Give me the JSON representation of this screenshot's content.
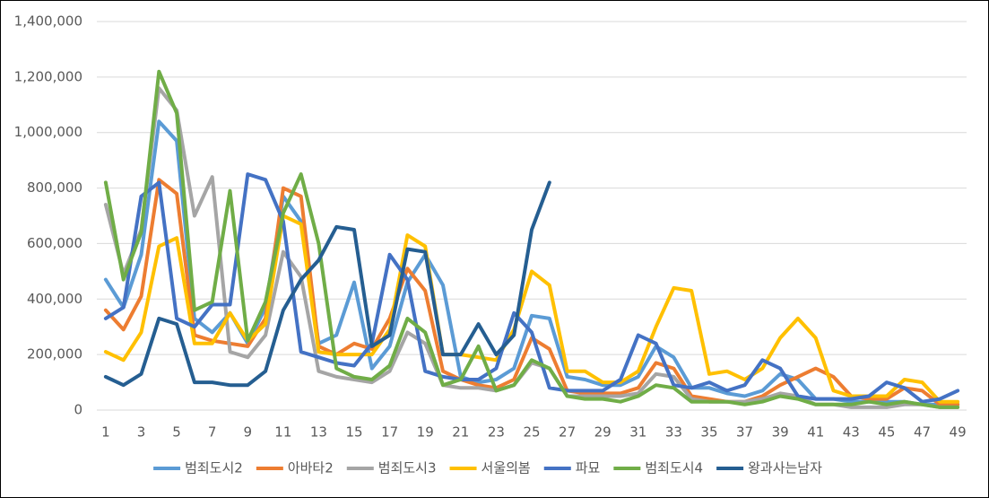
{
  "chart_data": {
    "type": "line",
    "categories": [
      "1",
      null,
      "3",
      null,
      "5",
      null,
      "7",
      null,
      "9",
      null,
      "11",
      null,
      "13",
      null,
      "15",
      null,
      "17",
      null,
      "19",
      null,
      "21",
      null,
      "23",
      null,
      "25",
      null,
      "27",
      null,
      "29",
      null,
      "31",
      null,
      "33",
      null,
      "35",
      null,
      "37",
      null,
      "39",
      null,
      "41",
      null,
      "43",
      null,
      "45",
      null,
      "47",
      null,
      "49"
    ],
    "ylim": [
      0,
      1400000
    ],
    "yticks": [
      {
        "value": 0,
        "label": "0"
      },
      {
        "value": 200000,
        "label": "200,000"
      },
      {
        "value": 400000,
        "label": "400,000"
      },
      {
        "value": 600000,
        "label": "600,000"
      },
      {
        "value": 800000,
        "label": "800,000"
      },
      {
        "value": 1000000,
        "label": "1,000,000"
      },
      {
        "value": 1200000,
        "label": "1,200,000"
      },
      {
        "value": 1400000,
        "label": "1,400,000"
      }
    ],
    "grid": true,
    "legend": "bottom",
    "series": [
      {
        "name": "범죄도시2",
        "color": "#5b9bd5",
        "values": [
          470000,
          370000,
          560000,
          1040000,
          970000,
          330000,
          280000,
          350000,
          240000,
          370000,
          770000,
          680000,
          240000,
          270000,
          460000,
          150000,
          230000,
          460000,
          560000,
          450000,
          120000,
          100000,
          110000,
          150000,
          340000,
          330000,
          120000,
          110000,
          90000,
          90000,
          120000,
          230000,
          190000,
          80000,
          80000,
          60000,
          50000,
          70000,
          130000,
          110000,
          40000,
          40000,
          30000,
          30000,
          30000,
          30000,
          20000,
          20000,
          20000
        ]
      },
      {
        "name": "아바타2",
        "color": "#ed7d31",
        "values": [
          360000,
          290000,
          410000,
          830000,
          780000,
          270000,
          250000,
          240000,
          230000,
          330000,
          800000,
          770000,
          230000,
          200000,
          240000,
          220000,
          330000,
          510000,
          430000,
          140000,
          110000,
          90000,
          80000,
          110000,
          260000,
          220000,
          70000,
          60000,
          60000,
          60000,
          80000,
          170000,
          150000,
          50000,
          40000,
          30000,
          30000,
          50000,
          90000,
          120000,
          150000,
          120000,
          50000,
          40000,
          40000,
          80000,
          70000,
          20000,
          20000
        ]
      },
      {
        "name": "범죄도시3",
        "color": "#a5a5a5",
        "values": [
          740000,
          490000,
          650000,
          1160000,
          1080000,
          700000,
          840000,
          210000,
          190000,
          270000,
          570000,
          480000,
          140000,
          120000,
          110000,
          100000,
          140000,
          280000,
          240000,
          90000,
          80000,
          80000,
          70000,
          90000,
          170000,
          150000,
          50000,
          50000,
          50000,
          50000,
          60000,
          130000,
          120000,
          40000,
          30000,
          30000,
          30000,
          40000,
          60000,
          50000,
          20000,
          20000,
          10000,
          10000,
          10000,
          20000,
          20000,
          10000,
          10000
        ]
      },
      {
        "name": "서울의봄",
        "color": "#ffc000",
        "values": [
          210000,
          180000,
          280000,
          590000,
          620000,
          240000,
          240000,
          350000,
          250000,
          310000,
          700000,
          670000,
          210000,
          200000,
          200000,
          200000,
          290000,
          630000,
          590000,
          200000,
          200000,
          190000,
          180000,
          290000,
          500000,
          450000,
          140000,
          140000,
          100000,
          100000,
          140000,
          300000,
          440000,
          430000,
          130000,
          140000,
          110000,
          150000,
          260000,
          330000,
          260000,
          70000,
          50000,
          50000,
          50000,
          110000,
          100000,
          30000,
          30000
        ]
      },
      {
        "name": "파묘",
        "color": "#4472c4",
        "values": [
          330000,
          370000,
          770000,
          820000,
          330000,
          300000,
          380000,
          380000,
          850000,
          830000,
          680000,
          210000,
          190000,
          170000,
          160000,
          240000,
          560000,
          470000,
          140000,
          120000,
          110000,
          110000,
          150000,
          350000,
          280000,
          80000,
          70000,
          70000,
          70000,
          110000,
          270000,
          240000,
          90000,
          80000,
          100000,
          70000,
          90000,
          180000,
          150000,
          50000,
          40000,
          40000,
          40000,
          50000,
          100000,
          80000,
          30000,
          40000,
          70000
        ]
      },
      {
        "name": "범죄도시4",
        "color": "#70ad47",
        "values": [
          820000,
          470000,
          640000,
          1220000,
          1070000,
          360000,
          390000,
          790000,
          250000,
          390000,
          710000,
          850000,
          600000,
          150000,
          120000,
          110000,
          160000,
          330000,
          280000,
          90000,
          110000,
          230000,
          70000,
          90000,
          180000,
          150000,
          50000,
          40000,
          40000,
          30000,
          50000,
          90000,
          80000,
          30000,
          30000,
          30000,
          20000,
          30000,
          50000,
          40000,
          20000,
          20000,
          20000,
          30000,
          20000,
          30000,
          20000,
          10000,
          10000
        ]
      },
      {
        "name": "왕과사는남자",
        "color": "#255e91",
        "values": [
          120000,
          90000,
          130000,
          330000,
          310000,
          100000,
          100000,
          90000,
          90000,
          140000,
          360000,
          470000,
          540000,
          660000,
          650000,
          230000,
          270000,
          580000,
          570000,
          200000,
          200000,
          310000,
          200000,
          270000,
          650000,
          820000,
          null,
          null,
          null,
          null,
          null,
          null,
          null,
          null,
          null,
          null,
          null,
          null,
          null,
          null,
          null,
          null,
          null,
          null,
          null,
          null,
          null,
          null,
          null
        ]
      }
    ]
  }
}
